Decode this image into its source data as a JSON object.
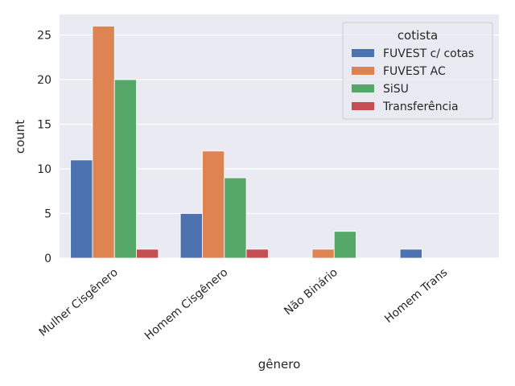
{
  "chart_data": {
    "type": "bar",
    "xlabel": "gênero",
    "ylabel": "count",
    "categories": [
      "Mulher Cisgênero",
      "Homem Cisgênero",
      "Não Binário",
      "Homem Trans"
    ],
    "ylim": [
      0,
      27.3
    ],
    "yticks": [
      0,
      5,
      10,
      15,
      20,
      25
    ],
    "grid": true,
    "legend": {
      "title": "cotista",
      "placement": "top-right"
    },
    "series": [
      {
        "name": "FUVEST c/ cotas",
        "color": "#4C72B0",
        "values": [
          11,
          5,
          0,
          1
        ]
      },
      {
        "name": "FUVEST AC",
        "color": "#DD8452",
        "values": [
          26,
          12,
          1,
          0
        ]
      },
      {
        "name": "SiSU",
        "color": "#55A868",
        "values": [
          20,
          9,
          3,
          0
        ]
      },
      {
        "name": "Transferência",
        "color": "#C44E52",
        "values": [
          1,
          1,
          0,
          0
        ]
      }
    ]
  }
}
